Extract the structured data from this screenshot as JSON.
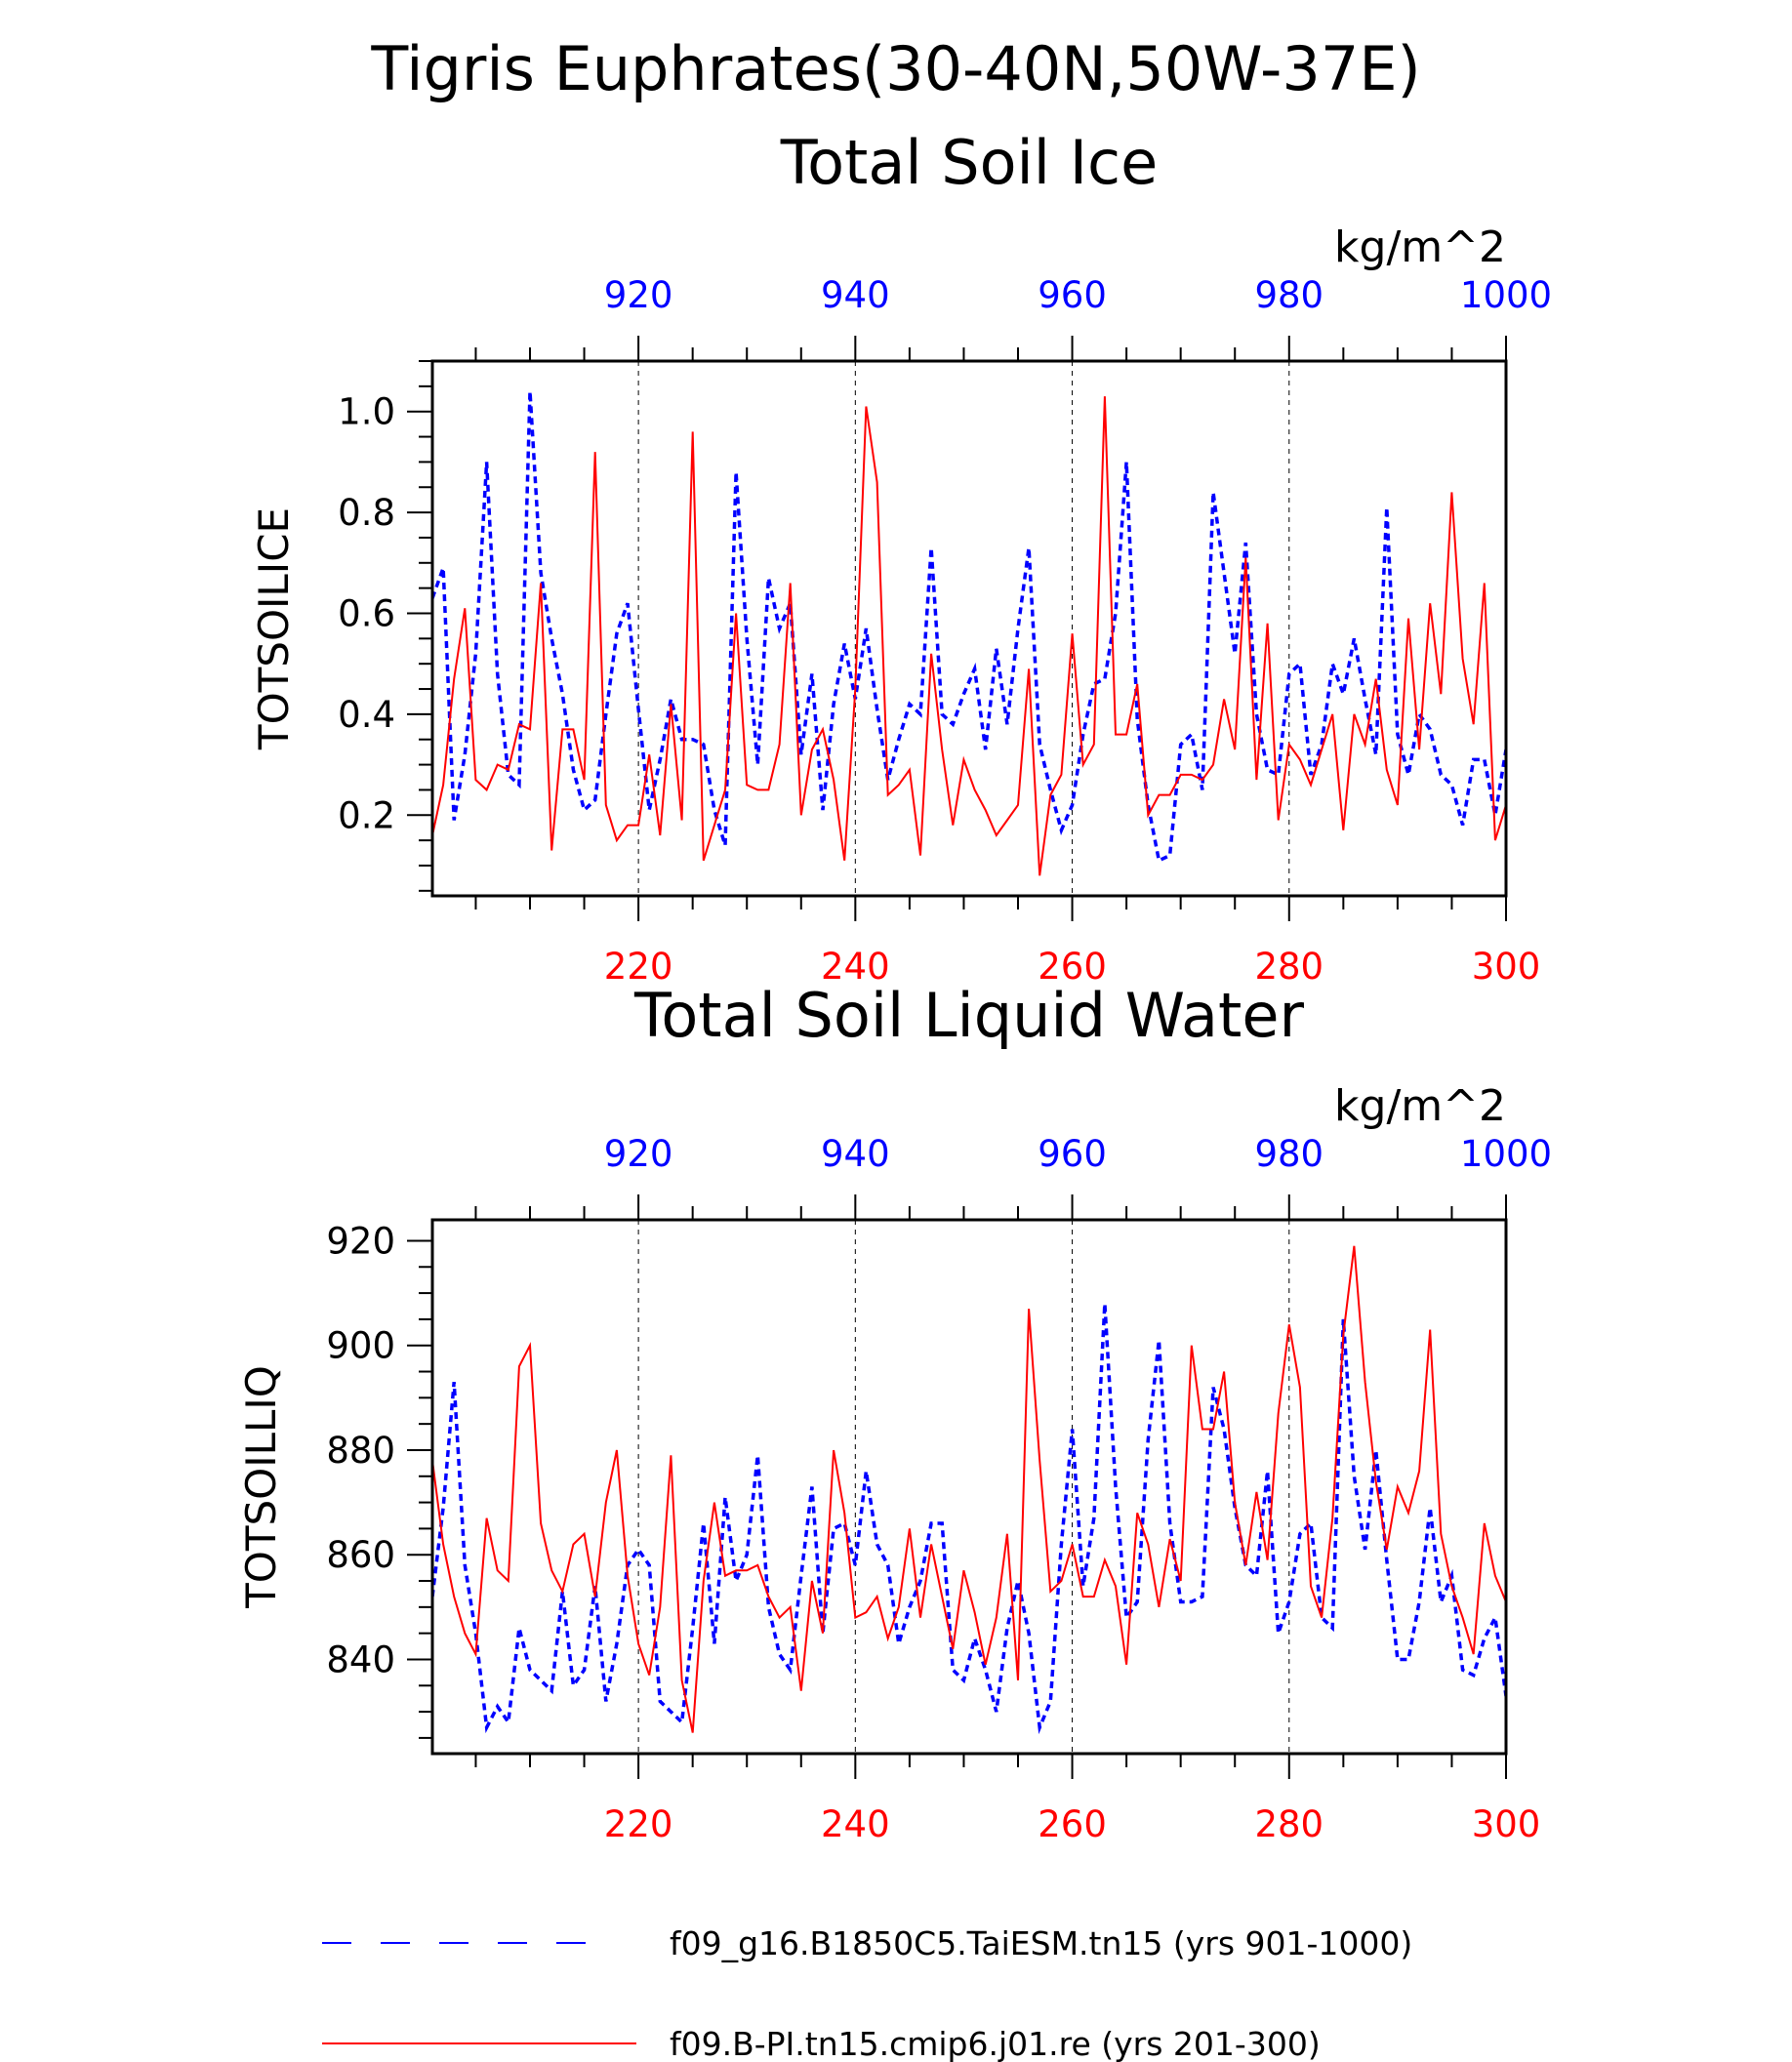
{
  "figure": {
    "title_line1": "Tigris Euphrates(30-40N,50W-37E)",
    "colors": {
      "model_a": "#0000ff",
      "model_b": "#ff0000",
      "axes": "#000000"
    }
  },
  "chart_data": [
    {
      "type": "line",
      "title": "Total Soil Ice",
      "ylabel": "TOTSOILICE",
      "units": "kg/m^2",
      "ylim": [
        0.04,
        1.1
      ],
      "yticks": [
        "0.2",
        "0.4",
        "0.6",
        "0.8",
        "1.0"
      ],
      "x_bottom": {
        "range": [
          201,
          300
        ],
        "ticks": [
          "220",
          "240",
          "260",
          "280",
          "300"
        ]
      },
      "x_top": {
        "range": [
          901,
          1000
        ],
        "ticks": [
          "920",
          "940",
          "960",
          "980",
          "1000"
        ]
      },
      "grid": "vertical dashed at major x ticks",
      "series": [
        {
          "name": "f09_g16.B1850C5.TaiESM.tn15 (yrs 901-1000)",
          "axis": "top",
          "style": "dashed",
          "color": "#0000ff",
          "values": [
            0.63,
            0.69,
            0.19,
            0.32,
            0.52,
            0.9,
            0.48,
            0.28,
            0.26,
            1.04,
            0.68,
            0.55,
            0.44,
            0.29,
            0.21,
            0.23,
            0.4,
            0.56,
            0.62,
            0.41,
            0.21,
            0.31,
            0.43,
            0.35,
            0.35,
            0.34,
            0.21,
            0.14,
            0.88,
            0.55,
            0.3,
            0.67,
            0.57,
            0.62,
            0.32,
            0.48,
            0.21,
            0.42,
            0.54,
            0.43,
            0.57,
            0.41,
            0.27,
            0.35,
            0.42,
            0.4,
            0.73,
            0.4,
            0.38,
            0.44,
            0.49,
            0.33,
            0.53,
            0.38,
            0.57,
            0.73,
            0.34,
            0.25,
            0.17,
            0.22,
            0.36,
            0.46,
            0.47,
            0.6,
            0.9,
            0.39,
            0.22,
            0.11,
            0.12,
            0.34,
            0.36,
            0.25,
            0.84,
            0.68,
            0.52,
            0.74,
            0.4,
            0.29,
            0.28,
            0.48,
            0.5,
            0.28,
            0.34,
            0.5,
            0.44,
            0.55,
            0.43,
            0.32,
            0.81,
            0.36,
            0.28,
            0.4,
            0.37,
            0.28,
            0.26,
            0.18,
            0.31,
            0.31,
            0.2,
            0.33
          ]
        },
        {
          "name": "f09.B-PI.tn15.cmip6.j01.re (yrs 201-300)",
          "axis": "bottom",
          "style": "solid",
          "color": "#ff0000",
          "values": [
            0.16,
            0.26,
            0.47,
            0.61,
            0.27,
            0.25,
            0.3,
            0.29,
            0.38,
            0.37,
            0.66,
            0.13,
            0.37,
            0.37,
            0.27,
            0.92,
            0.22,
            0.15,
            0.18,
            0.18,
            0.32,
            0.16,
            0.42,
            0.19,
            0.96,
            0.11,
            0.18,
            0.25,
            0.6,
            0.26,
            0.25,
            0.25,
            0.34,
            0.66,
            0.2,
            0.33,
            0.37,
            0.27,
            0.11,
            0.45,
            1.01,
            0.86,
            0.24,
            0.26,
            0.29,
            0.12,
            0.52,
            0.33,
            0.18,
            0.31,
            0.25,
            0.21,
            0.16,
            0.19,
            0.22,
            0.49,
            0.08,
            0.24,
            0.28,
            0.56,
            0.3,
            0.34,
            1.03,
            0.36,
            0.36,
            0.46,
            0.2,
            0.24,
            0.24,
            0.28,
            0.28,
            0.27,
            0.3,
            0.43,
            0.33,
            0.71,
            0.27,
            0.58,
            0.19,
            0.34,
            0.31,
            0.26,
            0.33,
            0.4,
            0.17,
            0.4,
            0.34,
            0.47,
            0.29,
            0.22,
            0.59,
            0.33,
            0.62,
            0.44,
            0.84,
            0.51,
            0.38,
            0.66,
            0.15,
            0.22
          ]
        }
      ]
    },
    {
      "type": "line",
      "title": "Total Soil Liquid Water",
      "ylabel": "TOTSOILLIQ",
      "units": "kg/m^2",
      "ylim": [
        822,
        924
      ],
      "yticks": [
        "840",
        "860",
        "880",
        "900",
        "920"
      ],
      "x_bottom": {
        "range": [
          201,
          300
        ],
        "ticks": [
          "220",
          "240",
          "260",
          "280",
          "300"
        ]
      },
      "x_top": {
        "range": [
          901,
          1000
        ],
        "ticks": [
          "920",
          "940",
          "960",
          "980",
          "1000"
        ]
      },
      "grid": "vertical dashed at major x ticks",
      "series": [
        {
          "name": "f09_g16.B1850C5.TaiESM.tn15 (yrs 901-1000)",
          "axis": "top",
          "style": "dashed",
          "color": "#0000ff",
          "values": [
            852,
            869,
            893,
            858,
            845,
            827,
            831,
            828,
            846,
            838,
            836,
            834,
            853,
            835,
            838,
            854,
            832,
            843,
            858,
            861,
            858,
            832,
            830,
            828,
            846,
            866,
            843,
            871,
            855,
            860,
            879,
            850,
            841,
            838,
            856,
            873,
            845,
            865,
            866,
            858,
            876,
            862,
            858,
            843,
            850,
            855,
            866,
            866,
            838,
            836,
            844,
            838,
            830,
            846,
            855,
            845,
            827,
            832,
            862,
            884,
            854,
            867,
            908,
            873,
            848,
            851,
            882,
            901,
            866,
            851,
            851,
            852,
            892,
            884,
            869,
            858,
            856,
            876,
            845,
            851,
            864,
            866,
            848,
            846,
            905,
            875,
            861,
            880,
            859,
            840,
            840,
            851,
            869,
            851,
            856,
            838,
            837,
            844,
            848,
            833
          ]
        },
        {
          "name": "f09.B-PI.tn15.cmip6.j01.re (yrs 201-300)",
          "axis": "bottom",
          "style": "solid",
          "color": "#ff0000",
          "values": [
            878,
            862,
            852,
            845,
            841,
            867,
            857,
            855,
            896,
            900,
            866,
            857,
            853,
            862,
            864,
            852,
            870,
            880,
            856,
            843,
            837,
            850,
            879,
            836,
            826,
            855,
            870,
            856,
            857,
            857,
            858,
            852,
            848,
            850,
            834,
            855,
            845,
            880,
            868,
            848,
            849,
            852,
            844,
            850,
            865,
            848,
            862,
            852,
            842,
            857,
            849,
            839,
            848,
            864,
            836,
            907,
            878,
            853,
            855,
            862,
            852,
            852,
            859,
            854,
            839,
            868,
            862,
            850,
            863,
            855,
            900,
            884,
            884,
            895,
            870,
            858,
            872,
            859,
            887,
            904,
            892,
            854,
            848,
            867,
            902,
            919,
            893,
            874,
            861,
            873,
            868,
            876,
            903,
            864,
            854,
            848,
            841,
            866,
            856,
            851
          ]
        }
      ]
    }
  ],
  "legend": {
    "items": [
      {
        "label": "f09_g16.B1850C5.TaiESM.tn15 (yrs 901-1000)",
        "style": "dashed",
        "color": "#0000ff"
      },
      {
        "label": "f09.B-PI.tn15.cmip6.j01.re (yrs 201-300)",
        "style": "solid",
        "color": "#ff0000"
      }
    ]
  }
}
